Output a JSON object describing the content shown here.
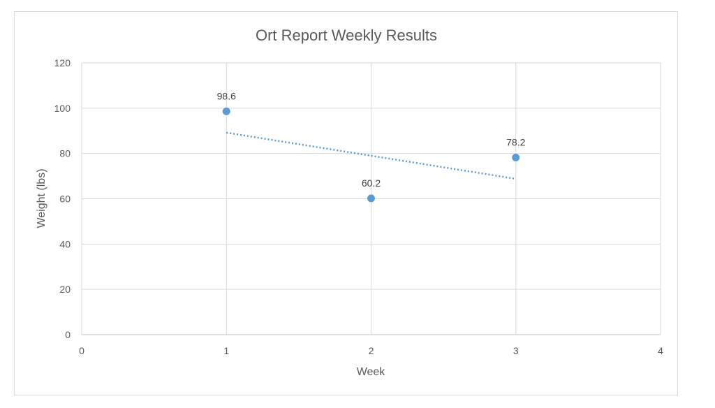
{
  "chart_data": {
    "type": "scatter",
    "title": "Ort Report Weekly Results",
    "xlabel": "Week",
    "ylabel": "Weight (lbs)",
    "xlim": [
      0,
      4
    ],
    "ylim": [
      0,
      120
    ],
    "x_ticks": [
      0,
      1,
      2,
      3,
      4
    ],
    "y_ticks": [
      0,
      20,
      40,
      60,
      80,
      100,
      120
    ],
    "grid": true,
    "series": [
      {
        "x": [
          1,
          2,
          3
        ],
        "y": [
          98.6,
          60.2,
          78.2
        ],
        "data_labels": [
          "98.6",
          "60.2",
          "78.2"
        ],
        "color": "#5b9bd5",
        "trendline": {
          "type": "linear",
          "style": "dotted"
        }
      }
    ]
  }
}
